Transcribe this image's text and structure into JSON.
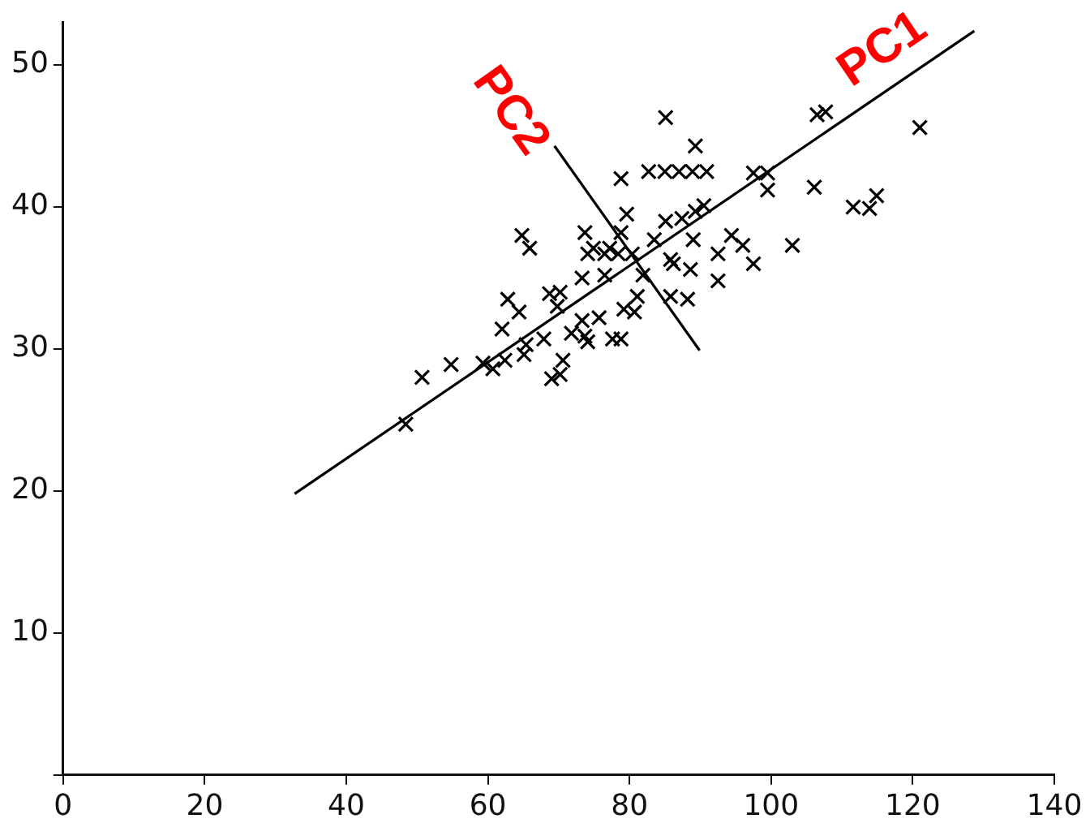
{
  "chart_data": {
    "type": "scatter",
    "xlim": [
      0,
      140
    ],
    "ylim": [
      0,
      53
    ],
    "xticks": [
      0,
      20,
      40,
      60,
      80,
      100,
      120,
      140
    ],
    "yticks": [
      {
        "value": 0,
        "label": null
      },
      10,
      20,
      30,
      40,
      50
    ],
    "grid": false,
    "legend": false,
    "series": [
      {
        "color": "#000000",
        "marker": "cross",
        "x": [
          48.4,
          50.7,
          54.8,
          59.3,
          60.7,
          62.4,
          65.1,
          65.4,
          62.0,
          64.4,
          62.8,
          64.8,
          65.9,
          68.7,
          70.2,
          69.8,
          67.9,
          69.0,
          70.2,
          70.6,
          71.8,
          73.3,
          73.7,
          74.1,
          75.7,
          77.6,
          78.8,
          73.3,
          73.7,
          74.1,
          74.9,
          76.5,
          77.2,
          76.5,
          78.8,
          78.4,
          80.4,
          79.6,
          78.8,
          79.2,
          80.7,
          81.1,
          81.9,
          82.7,
          85.0,
          87.0,
          88.9,
          90.9,
          85.1,
          85.1,
          85.8,
          85.8,
          89.3,
          97.5,
          99.5,
          99.5,
          106.5,
          107.7,
          121.0,
          106.1,
          111.6,
          113.9,
          114.9,
          103.0,
          94.4,
          96.0,
          97.5,
          92.5,
          92.5,
          87.4,
          89.3,
          90.5,
          83.5,
          86.2,
          88.6,
          89.0,
          88.2
        ],
        "values": [
          24.7,
          28.0,
          28.9,
          29.0,
          28.6,
          29.2,
          29.6,
          30.3,
          31.4,
          32.6,
          33.5,
          38.0,
          37.1,
          33.9,
          34.0,
          33.0,
          30.7,
          27.9,
          28.2,
          29.2,
          31.1,
          32.0,
          30.9,
          30.5,
          32.2,
          30.7,
          30.7,
          35.0,
          38.2,
          36.7,
          37.1,
          36.7,
          37.1,
          35.2,
          38.2,
          36.7,
          36.7,
          39.5,
          42.0,
          32.8,
          32.6,
          33.7,
          35.2,
          42.5,
          42.5,
          42.5,
          42.5,
          42.5,
          46.3,
          39.0,
          36.3,
          33.7,
          44.3,
          42.4,
          42.4,
          41.2,
          46.5,
          46.7,
          45.6,
          41.4,
          40.0,
          39.9,
          40.8,
          37.3,
          38.0,
          37.3,
          36.0,
          36.7,
          34.8,
          39.2,
          39.7,
          40.1,
          37.7,
          36.0,
          35.6,
          37.7,
          33.5
        ]
      },
      {
        "type": "line",
        "name": "PC1",
        "color": "#000000",
        "marker": "none",
        "x": [
          32.7,
          128.7
        ],
        "values": [
          19.8,
          52.4
        ]
      },
      {
        "type": "line",
        "name": "PC2",
        "color": "#000000",
        "marker": "none",
        "x": [
          69.4,
          89.9
        ],
        "values": [
          44.3,
          29.9
        ]
      }
    ]
  }
}
